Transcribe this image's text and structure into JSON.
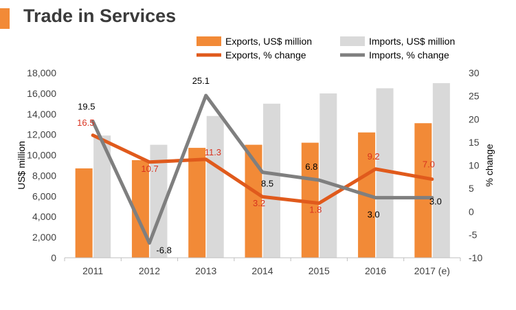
{
  "page_title": "Trade in Services",
  "colors": {
    "exports_bar": "#f28a37",
    "imports_bar": "#d9d9d9",
    "exports_line": "#e05a1c",
    "imports_line": "#7f7f7f",
    "exports_label": "#d9321f",
    "imports_label": "#000000",
    "title_accent": "#f28a37"
  },
  "chart_data": {
    "type": "bar",
    "title": "Trade in Services",
    "categories": [
      "2011",
      "2012",
      "2013",
      "2014",
      "2015",
      "2016",
      "2017 (e)"
    ],
    "ylabel": "US$ million",
    "y2label": "% change",
    "ylim": [
      0,
      18000
    ],
    "y2lim": [
      -10,
      30
    ],
    "yticks": [
      "0",
      "2,000",
      "4,000",
      "6,000",
      "8,000",
      "10,000",
      "12,000",
      "14,000",
      "16,000",
      "18,000"
    ],
    "y2ticks": [
      "-10",
      "-5",
      "0",
      "5",
      "10",
      "15",
      "20",
      "25",
      "30"
    ],
    "grid": false,
    "legend_position": "top",
    "series": [
      {
        "name": "Exports, US$ million",
        "kind": "bar",
        "axis": "left",
        "values": [
          8700,
          9500,
          10700,
          11000,
          11200,
          12200,
          13100
        ]
      },
      {
        "name": "Imports, US$ million",
        "kind": "bar",
        "axis": "left",
        "values": [
          11900,
          11000,
          13800,
          15000,
          16000,
          16500,
          17000
        ]
      },
      {
        "name": "Exports, % change",
        "kind": "line",
        "axis": "right",
        "values": [
          16.5,
          10.7,
          11.3,
          3.2,
          1.8,
          9.2,
          7.0
        ],
        "labels": [
          "16.5",
          "10.7",
          "11.3",
          "3.2",
          "1.8",
          "9.2",
          "7.0"
        ]
      },
      {
        "name": "Imports, % change",
        "kind": "line",
        "axis": "right",
        "values": [
          19.5,
          -6.8,
          25.1,
          8.5,
          6.8,
          3.0,
          3.0
        ],
        "labels": [
          "19.5",
          "-6.8",
          "25.1",
          "8.5",
          "6.8",
          "3.0",
          "3.0"
        ]
      }
    ]
  }
}
